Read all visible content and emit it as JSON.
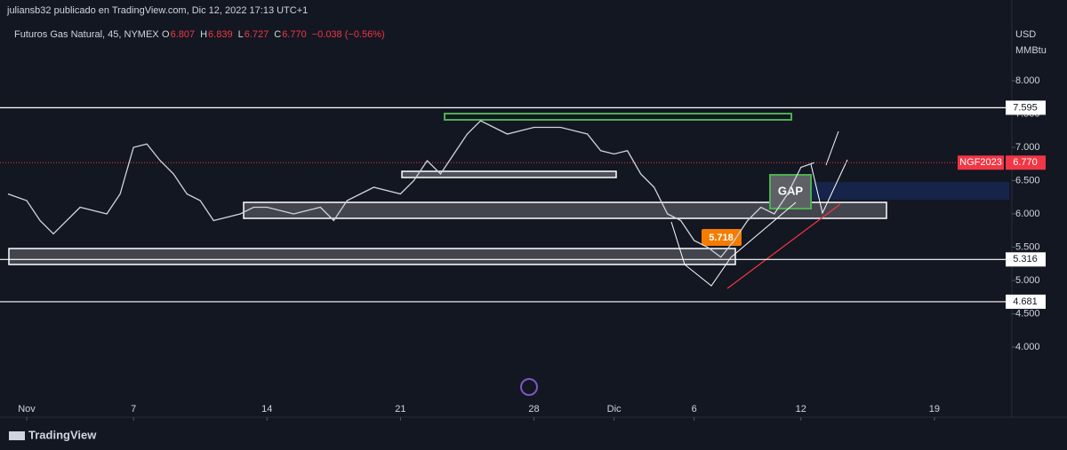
{
  "header": {
    "publisher": "juliansb32 publicado en TradingView.com, Dic 12, 2022 17:13 UTC+1",
    "symbol": "Futuros Gas Natural, 45, NYMEX",
    "ohlc": [
      {
        "label": "O",
        "value": "6.807"
      },
      {
        "label": "H",
        "value": "6.839"
      },
      {
        "label": "L",
        "value": "6.727"
      },
      {
        "label": "C",
        "value": "6.770"
      }
    ],
    "change": "−0.038 (−0.56%)",
    "brand": "TradingView"
  },
  "chart_data": {
    "type": "line",
    "color": "#d1d4dc",
    "currency": "USD",
    "unit": "MMBtu",
    "x": [
      -0.7,
      0,
      0.5,
      1,
      2,
      3,
      3.5,
      4,
      4.5,
      5,
      5.5,
      6,
      6.5,
      7,
      8,
      8.5,
      9,
      10,
      11,
      11.5,
      12,
      13,
      14,
      14.5,
      15,
      15.5,
      16,
      16.5,
      17,
      18,
      19,
      20,
      21,
      21.5,
      22,
      22.5,
      23,
      23.5,
      24,
      24.5,
      25,
      25.5,
      26,
      26.5,
      27,
      27.5,
      28,
      28.5,
      29,
      29.5
    ],
    "values": [
      6.3,
      6.2,
      5.9,
      5.7,
      6.1,
      6.0,
      6.3,
      7.0,
      7.05,
      6.8,
      6.6,
      6.3,
      6.2,
      5.9,
      6.0,
      6.1,
      6.1,
      6.0,
      6.1,
      5.9,
      6.2,
      6.4,
      6.3,
      6.5,
      6.8,
      6.6,
      6.9,
      7.2,
      7.4,
      7.2,
      7.3,
      7.3,
      7.2,
      6.95,
      6.9,
      6.95,
      6.6,
      6.4,
      6.0,
      5.9,
      5.6,
      5.5,
      5.35,
      5.6,
      5.9,
      6.1,
      6.0,
      6.3,
      6.7,
      6.77
    ],
    "xlim": [
      -1,
      36.8
    ],
    "xticks": [
      {
        "value": 0,
        "label": "Nov"
      },
      {
        "value": 4,
        "label": "7"
      },
      {
        "value": 9,
        "label": "14"
      },
      {
        "value": 14,
        "label": "21"
      },
      {
        "value": 19,
        "label": "28"
      },
      {
        "value": 22,
        "label": "Dic"
      },
      {
        "value": 25,
        "label": "6"
      },
      {
        "value": 29,
        "label": "12"
      },
      {
        "value": 34,
        "label": "19"
      }
    ],
    "ylim": [
      3.2,
      8.8
    ],
    "yticks": [
      {
        "value": 8,
        "label": "8.000"
      },
      {
        "value": 7.5,
        "label": "7.500"
      },
      {
        "value": 7,
        "label": "7.000"
      },
      {
        "value": 6.5,
        "label": "6.500"
      },
      {
        "value": 6,
        "label": "6.000"
      },
      {
        "value": 5.5,
        "label": "5.500"
      },
      {
        "value": 5,
        "label": "5.000"
      },
      {
        "value": 4.5,
        "label": "4.500"
      },
      {
        "value": 4,
        "label": "4.000"
      }
    ],
    "hlines": [
      {
        "value": 7.595,
        "label": "7.595"
      },
      {
        "value": 5.316,
        "label": "5.316"
      },
      {
        "value": 4.681,
        "label": "4.681"
      }
    ],
    "last": {
      "name": "NGF2023",
      "value": 6.77,
      "label": "6.770"
    },
    "annotations": [
      {
        "text": "GAP"
      },
      {
        "text": "5.718"
      }
    ]
  }
}
